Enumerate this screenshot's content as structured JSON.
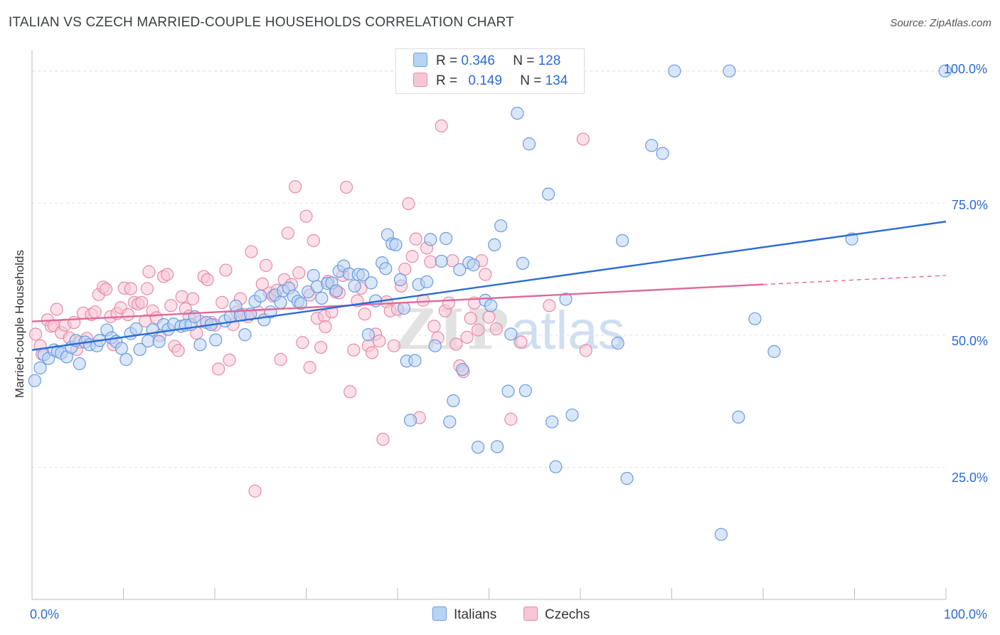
{
  "header": {
    "title": "ITALIAN VS CZECH MARRIED-COUPLE HOUSEHOLDS CORRELATION CHART",
    "source": "Source: ZipAtlas.com"
  },
  "legend_top": {
    "italians": {
      "r_label": "R =",
      "r_value": "0.346",
      "n_label": "N =",
      "n_value": "128"
    },
    "czechs": {
      "r_label": "R =",
      "r_value": "0.149",
      "n_label": "N =",
      "n_value": "134"
    }
  },
  "legend_bottom": {
    "italians": "Italians",
    "czechs": "Czechs"
  },
  "colors": {
    "italians_fill": "#b9d3f3",
    "italians_stroke": "#6a9be0",
    "italians_line": "#2b6bd6",
    "czechs_fill": "#f7c6d5",
    "czechs_stroke": "#e88aa8",
    "czechs_line": "#e0689a",
    "tick_text": "#2b6bd6",
    "grid": "#e3e3e3"
  },
  "chart_data": {
    "type": "scatter",
    "title": "ITALIAN VS CZECH MARRIED-COUPLE HOUSEHOLDS CORRELATION CHART",
    "xlabel": "",
    "ylabel": "Married-couple Households",
    "xlim": [
      0,
      100
    ],
    "ylim": [
      0,
      104
    ],
    "x_tick_labels": [
      "0.0%",
      "100.0%"
    ],
    "y_ticks": [
      25,
      50,
      75,
      100
    ],
    "y_tick_labels": [
      "25.0%",
      "50.0%",
      "75.0%",
      "100.0%"
    ],
    "grid": true,
    "legend_position": "top-center",
    "series": [
      {
        "name": "Italians",
        "r": 0.346,
        "n": 128,
        "trend": {
          "x": [
            0,
            100
          ],
          "y": [
            47.2,
            71.5
          ]
        },
        "points": [
          [
            0.3,
            41.4
          ],
          [
            0.9,
            43.8
          ],
          [
            1.3,
            46.3
          ],
          [
            1.8,
            45.6
          ],
          [
            2.4,
            47.2
          ],
          [
            2.8,
            46.9
          ],
          [
            3.2,
            46.6
          ],
          [
            3.8,
            45.9
          ],
          [
            4.3,
            47.7
          ],
          [
            4.8,
            49.0
          ],
          [
            5.2,
            44.6
          ],
          [
            5.8,
            48.7
          ],
          [
            6.3,
            48.2
          ],
          [
            7.1,
            48.0
          ],
          [
            7.4,
            49.0
          ],
          [
            8.2,
            51.0
          ],
          [
            8.7,
            49.5
          ],
          [
            9.2,
            48.8
          ],
          [
            9.8,
            47.5
          ],
          [
            10.3,
            45.4
          ],
          [
            10.8,
            50.3
          ],
          [
            11.4,
            51.2
          ],
          [
            11.8,
            47.3
          ],
          [
            12.7,
            48.9
          ],
          [
            13.2,
            51.0
          ],
          [
            13.9,
            48.8
          ],
          [
            14.4,
            52.0
          ],
          [
            14.9,
            51.1
          ],
          [
            15.5,
            52.1
          ],
          [
            16.3,
            51.7
          ],
          [
            16.8,
            51.9
          ],
          [
            17.4,
            52.0
          ],
          [
            17.8,
            53.5
          ],
          [
            18.4,
            48.2
          ],
          [
            19.1,
            52.4
          ],
          [
            19.6,
            52.0
          ],
          [
            20.1,
            49.1
          ],
          [
            21.1,
            52.7
          ],
          [
            21.7,
            53.5
          ],
          [
            22.3,
            55.5
          ],
          [
            22.8,
            53.8
          ],
          [
            23.3,
            50.1
          ],
          [
            23.9,
            54.0
          ],
          [
            24.4,
            56.4
          ],
          [
            25.0,
            57.4
          ],
          [
            25.4,
            52.9
          ],
          [
            26.1,
            54.4
          ],
          [
            26.6,
            57.6
          ],
          [
            27.2,
            56.2
          ],
          [
            27.5,
            58.4
          ],
          [
            28.1,
            58.9
          ],
          [
            28.6,
            57.4
          ],
          [
            29.1,
            56.4
          ],
          [
            29.4,
            56.0
          ],
          [
            30.2,
            58.2
          ],
          [
            30.8,
            61.3
          ],
          [
            31.2,
            59.2
          ],
          [
            31.7,
            57.0
          ],
          [
            32.3,
            59.8
          ],
          [
            32.8,
            59.9
          ],
          [
            33.3,
            58.4
          ],
          [
            33.6,
            62.1
          ],
          [
            34.1,
            63.1
          ],
          [
            34.7,
            61.6
          ],
          [
            35.3,
            59.3
          ],
          [
            35.7,
            61.5
          ],
          [
            36.2,
            61.4
          ],
          [
            36.8,
            50.1
          ],
          [
            37.1,
            59.9
          ],
          [
            37.6,
            56.5
          ],
          [
            38.3,
            63.7
          ],
          [
            38.7,
            62.6
          ],
          [
            38.9,
            69.0
          ],
          [
            39.4,
            67.3
          ],
          [
            39.8,
            67.1
          ],
          [
            40.3,
            60.5
          ],
          [
            40.7,
            55.1
          ],
          [
            41.0,
            45.1
          ],
          [
            41.4,
            33.9
          ],
          [
            41.9,
            45.2
          ],
          [
            42.3,
            59.6
          ],
          [
            43.2,
            60.1
          ],
          [
            43.6,
            68.1
          ],
          [
            44.1,
            48.0
          ],
          [
            44.8,
            64.0
          ],
          [
            45.3,
            68.3
          ],
          [
            45.7,
            33.6
          ],
          [
            46.1,
            37.6
          ],
          [
            46.8,
            62.4
          ],
          [
            47.1,
            43.5
          ],
          [
            47.8,
            63.7
          ],
          [
            48.3,
            63.3
          ],
          [
            48.8,
            28.8
          ],
          [
            49.6,
            56.6
          ],
          [
            50.2,
            55.6
          ],
          [
            50.6,
            67.1
          ],
          [
            50.9,
            28.9
          ],
          [
            51.3,
            70.7
          ],
          [
            52.1,
            39.4
          ],
          [
            52.4,
            50.2
          ],
          [
            53.1,
            92.0
          ],
          [
            53.7,
            63.6
          ],
          [
            54.0,
            39.5
          ],
          [
            54.4,
            86.2
          ],
          [
            55.1,
            99.8
          ],
          [
            55.8,
            100.0
          ],
          [
            56.5,
            76.7
          ],
          [
            56.9,
            33.6
          ],
          [
            57.3,
            25.1
          ],
          [
            58.4,
            56.8
          ],
          [
            59.1,
            34.9
          ],
          [
            64.1,
            48.5
          ],
          [
            64.6,
            67.9
          ],
          [
            65.1,
            22.9
          ],
          [
            67.8,
            85.9
          ],
          [
            69.0,
            84.4
          ],
          [
            70.3,
            100.0
          ],
          [
            75.4,
            12.3
          ],
          [
            76.3,
            100.0
          ],
          [
            77.3,
            34.5
          ],
          [
            79.1,
            53.1
          ],
          [
            81.2,
            46.9
          ],
          [
            89.7,
            68.2
          ],
          [
            99.9,
            100.0
          ]
        ]
      },
      {
        "name": "Czechs",
        "r": 0.149,
        "n": 134,
        "trend": {
          "x": [
            0,
            80
          ],
          "y": [
            52.6,
            59.6
          ]
        },
        "trend_dashed_extension": {
          "x": [
            80,
            100
          ],
          "y": [
            59.6,
            61.3
          ]
        },
        "points": [
          [
            0.4,
            50.2
          ],
          [
            0.9,
            48.0
          ],
          [
            1.1,
            46.4
          ],
          [
            1.7,
            52.9
          ],
          [
            2.1,
            51.7
          ],
          [
            2.4,
            51.8
          ],
          [
            2.7,
            54.9
          ],
          [
            3.2,
            50.5
          ],
          [
            3.6,
            51.9
          ],
          [
            4.1,
            49.5
          ],
          [
            4.6,
            52.4
          ],
          [
            4.9,
            47.3
          ],
          [
            5.2,
            48.7
          ],
          [
            5.6,
            54.2
          ],
          [
            6.0,
            49.4
          ],
          [
            6.5,
            53.9
          ],
          [
            6.9,
            54.4
          ],
          [
            7.3,
            57.7
          ],
          [
            7.8,
            59.1
          ],
          [
            8.1,
            58.7
          ],
          [
            8.6,
            53.5
          ],
          [
            8.9,
            48.2
          ],
          [
            9.3,
            54.1
          ],
          [
            9.7,
            55.2
          ],
          [
            10.1,
            58.9
          ],
          [
            10.5,
            53.9
          ],
          [
            10.8,
            58.8
          ],
          [
            11.2,
            56.2
          ],
          [
            11.6,
            55.9
          ],
          [
            12.0,
            56.2
          ],
          [
            12.4,
            52.7
          ],
          [
            12.8,
            62.0
          ],
          [
            13.2,
            54.6
          ],
          [
            13.6,
            53.3
          ],
          [
            14.0,
            49.9
          ],
          [
            14.4,
            61.1
          ],
          [
            14.8,
            61.5
          ],
          [
            15.2,
            55.6
          ],
          [
            15.6,
            47.9
          ],
          [
            16.0,
            47.1
          ],
          [
            16.4,
            57.3
          ],
          [
            16.8,
            55.0
          ],
          [
            17.2,
            53.6
          ],
          [
            17.6,
            56.9
          ],
          [
            18.0,
            50.4
          ],
          [
            18.4,
            52.6
          ],
          [
            18.8,
            61.1
          ],
          [
            19.2,
            60.5
          ],
          [
            19.6,
            52.4
          ],
          [
            20.0,
            51.9
          ],
          [
            20.4,
            43.6
          ],
          [
            20.8,
            56.2
          ],
          [
            21.2,
            62.3
          ],
          [
            21.6,
            45.3
          ],
          [
            22.0,
            52.0
          ],
          [
            22.4,
            54.4
          ],
          [
            22.8,
            56.9
          ],
          [
            23.2,
            53.9
          ],
          [
            23.6,
            53.5
          ],
          [
            24.0,
            65.8
          ],
          [
            24.4,
            20.5
          ],
          [
            24.8,
            54.3
          ],
          [
            25.2,
            59.7
          ],
          [
            25.6,
            63.2
          ],
          [
            26.0,
            58.0
          ],
          [
            26.4,
            57.4
          ],
          [
            26.8,
            58.5
          ],
          [
            27.2,
            45.4
          ],
          [
            27.6,
            60.5
          ],
          [
            28.0,
            69.3
          ],
          [
            28.4,
            59.6
          ],
          [
            28.8,
            78.1
          ],
          [
            29.2,
            61.8
          ],
          [
            29.6,
            48.6
          ],
          [
            30.0,
            72.5
          ],
          [
            30.4,
            43.9
          ],
          [
            30.8,
            67.9
          ],
          [
            31.2,
            53.2
          ],
          [
            31.6,
            47.7
          ],
          [
            32.0,
            53.6
          ],
          [
            32.4,
            60.2
          ],
          [
            32.8,
            54.4
          ],
          [
            33.2,
            58.2
          ],
          [
            33.6,
            58.0
          ],
          [
            34.0,
            61.3
          ],
          [
            34.4,
            78.0
          ],
          [
            34.8,
            39.3
          ],
          [
            35.2,
            47.2
          ],
          [
            35.6,
            56.5
          ],
          [
            36.0,
            58.9
          ],
          [
            36.4,
            54.0
          ],
          [
            36.8,
            48.0
          ],
          [
            37.2,
            46.7
          ],
          [
            37.6,
            50.2
          ],
          [
            38.0,
            48.9
          ],
          [
            38.4,
            30.3
          ],
          [
            38.8,
            56.3
          ],
          [
            39.2,
            54.6
          ],
          [
            39.6,
            48.0
          ],
          [
            40.0,
            54.9
          ],
          [
            40.4,
            59.3
          ],
          [
            40.8,
            62.5
          ],
          [
            41.2,
            74.9
          ],
          [
            41.6,
            64.9
          ],
          [
            42.0,
            68.2
          ],
          [
            42.4,
            34.4
          ],
          [
            42.8,
            56.6
          ],
          [
            43.2,
            66.5
          ],
          [
            43.6,
            63.9
          ],
          [
            44.0,
            51.7
          ],
          [
            44.4,
            49.5
          ],
          [
            44.8,
            89.6
          ],
          [
            45.2,
            54.6
          ],
          [
            45.6,
            56.1
          ],
          [
            46.0,
            64.1
          ],
          [
            46.4,
            48.3
          ],
          [
            46.8,
            44.2
          ],
          [
            47.2,
            43.1
          ],
          [
            47.6,
            49.6
          ],
          [
            48.0,
            53.2
          ],
          [
            48.4,
            56.1
          ],
          [
            48.8,
            51.0
          ],
          [
            49.2,
            64.1
          ],
          [
            49.6,
            61.5
          ],
          [
            50.0,
            53.4
          ],
          [
            50.8,
            51.2
          ],
          [
            52.4,
            34.1
          ],
          [
            53.5,
            48.7
          ],
          [
            56.6,
            55.6
          ],
          [
            60.3,
            87.1
          ],
          [
            60.6,
            47.1
          ],
          [
            30.4,
            57.6
          ],
          [
            32.1,
            51.6
          ],
          [
            12.6,
            58.8
          ]
        ]
      }
    ]
  }
}
